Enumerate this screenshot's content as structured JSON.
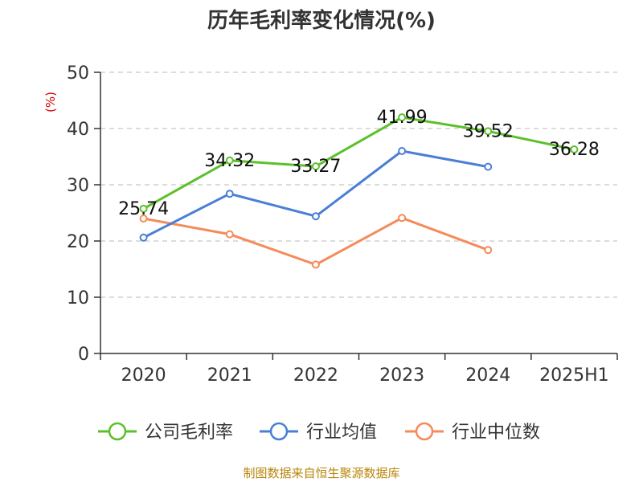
{
  "chart_data": {
    "type": "line",
    "title": "历年毛利率变化情况(%)",
    "ylabel": "(%)",
    "categories": [
      "2020",
      "2021",
      "2022",
      "2023",
      "2024",
      "2025H1"
    ],
    "ylim": [
      0,
      50
    ],
    "yticks": [
      0,
      10,
      20,
      30,
      40,
      50
    ],
    "grid": true,
    "legend_position": "bottom",
    "series": [
      {
        "name": "公司毛利率",
        "color": "#5cc02a",
        "values": [
          25.74,
          34.32,
          33.27,
          41.99,
          39.52,
          36.28
        ],
        "labels": [
          "25.74",
          "34.32",
          "33.27",
          "41.99",
          "39.52",
          "36.28"
        ]
      },
      {
        "name": "行业均值",
        "color": "#4a7fd6",
        "values": [
          20.6,
          28.4,
          24.4,
          36.0,
          33.2,
          null
        ]
      },
      {
        "name": "行业中位数",
        "color": "#f58b5a",
        "values": [
          24.0,
          21.2,
          15.8,
          24.1,
          18.4,
          null
        ]
      }
    ]
  },
  "footer": {
    "source": "制图数据来自恒生聚源数据库"
  }
}
